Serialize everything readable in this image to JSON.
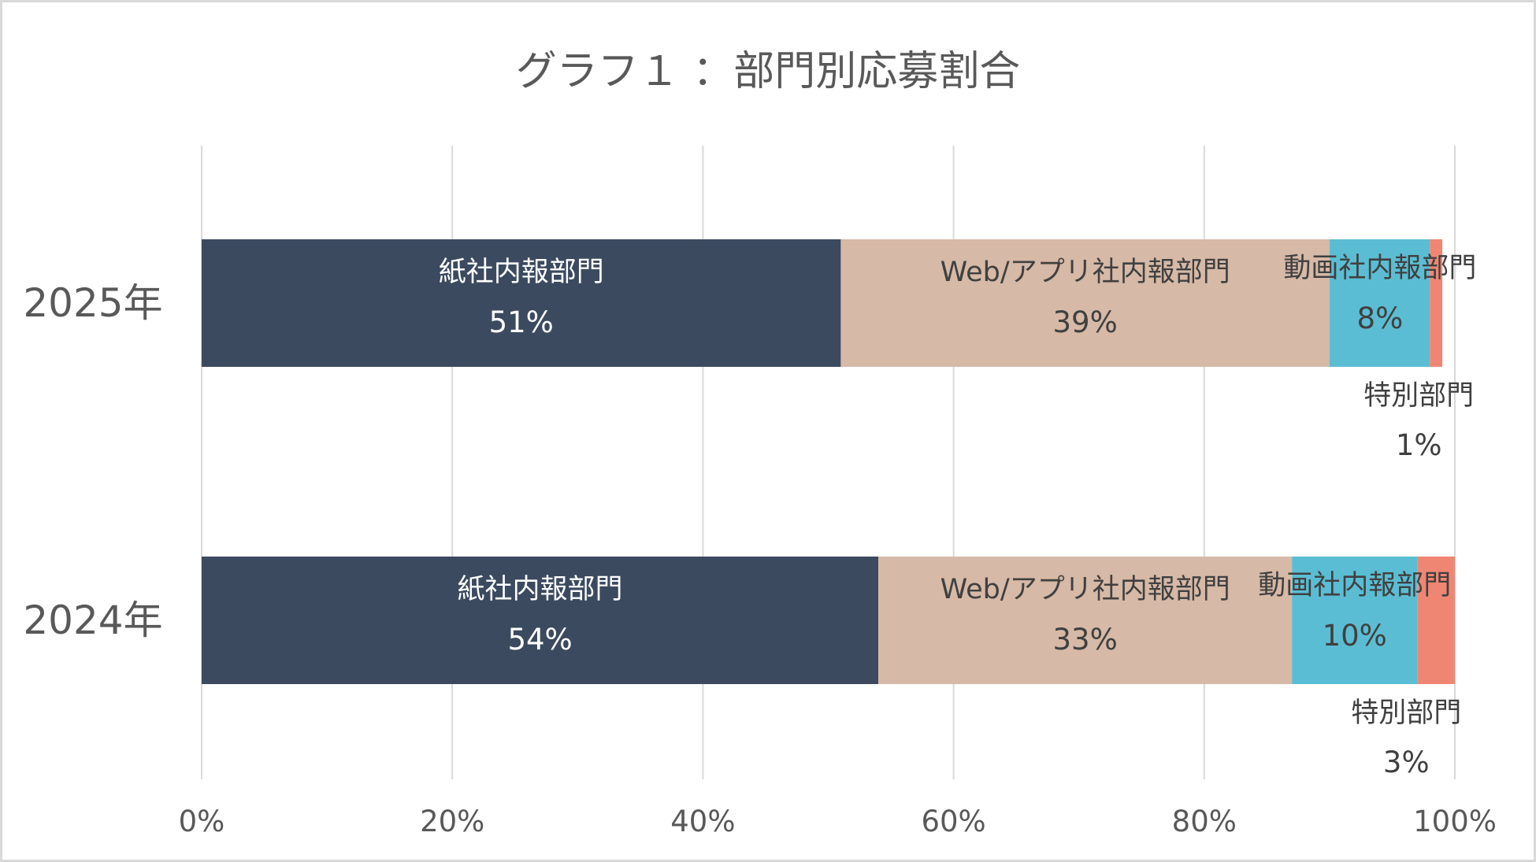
{
  "chart_data": {
    "type": "bar",
    "orientation": "horizontal",
    "stacked": "percent",
    "title": "グラフ１ ：部門別応募割合",
    "categories": [
      "2025年",
      "2024年"
    ],
    "series": [
      {
        "name": "紙社内報部門",
        "color": "#3b4a5f",
        "label_color": "#ffffff",
        "values": [
          51,
          54
        ],
        "labels": [
          "51%",
          "54%"
        ]
      },
      {
        "name": "Web/アプリ社内報部門",
        "color": "#d6b9a6",
        "label_color": "#404040",
        "values": [
          39,
          33
        ],
        "labels": [
          "39%",
          "33%"
        ]
      },
      {
        "name": "動画社内報部門",
        "color": "#5bbdd3",
        "label_color": "#404040",
        "values": [
          8,
          10
        ],
        "labels": [
          "8%",
          "10%"
        ]
      },
      {
        "name": "特別部門",
        "color": "#ef8673",
        "label_color": "#404040",
        "values": [
          1,
          3
        ],
        "labels": [
          "1%",
          "3%"
        ]
      }
    ],
    "x_ticks": [
      "0%",
      "20%",
      "40%",
      "60%",
      "80%",
      "100%"
    ],
    "xlim": [
      0,
      100
    ],
    "grid": true,
    "legend": "none",
    "data_labels": "category name and percentage"
  }
}
